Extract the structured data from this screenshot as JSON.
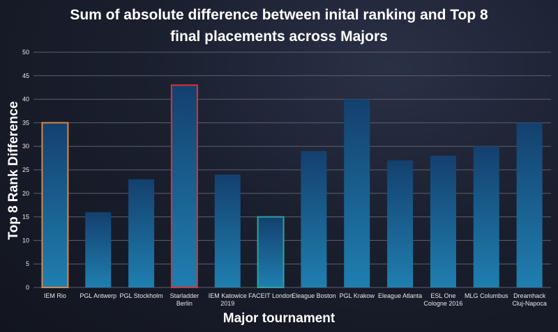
{
  "chart_data": {
    "type": "bar",
    "title": "Sum of absolute difference between inital ranking and Top 8 final placements across Majors",
    "title_lines": [
      "Sum of absolute difference between inital ranking and Top 8",
      "final placements across Majors"
    ],
    "xlabel": "Major tournament",
    "ylabel": "Top 8 Rank Difference",
    "ylim": [
      0,
      50
    ],
    "yticks": [
      0,
      5,
      10,
      15,
      20,
      25,
      30,
      35,
      40,
      45,
      50
    ],
    "grid": true,
    "categories": [
      [
        "IEM Rio"
      ],
      [
        "PGL Antwerp"
      ],
      [
        "PGL Stockholm"
      ],
      [
        "Starladder",
        "Berlin"
      ],
      [
        "IEM Katowice",
        "2019"
      ],
      [
        "FACEIT  London"
      ],
      [
        "Eleague Boston"
      ],
      [
        "PGL Krakow"
      ],
      [
        "Eleague Atlanta"
      ],
      [
        "ESL One",
        "Cologne 2016"
      ],
      [
        "MLG Columbus"
      ],
      [
        "Dreamhack",
        "Cluj-Napoca"
      ]
    ],
    "values": [
      35,
      16,
      23,
      43,
      24,
      15,
      29,
      40,
      27,
      28,
      30,
      35
    ],
    "highlights": [
      "#d9874a",
      null,
      null,
      "#e03030",
      null,
      "#2fa39a",
      null,
      null,
      null,
      null,
      null,
      null
    ],
    "colors": {
      "bar_top": "#14406e",
      "bar_bottom": "#1f7fb0",
      "grid": "#5b6070",
      "axis_text": "#e8e8e8"
    }
  }
}
